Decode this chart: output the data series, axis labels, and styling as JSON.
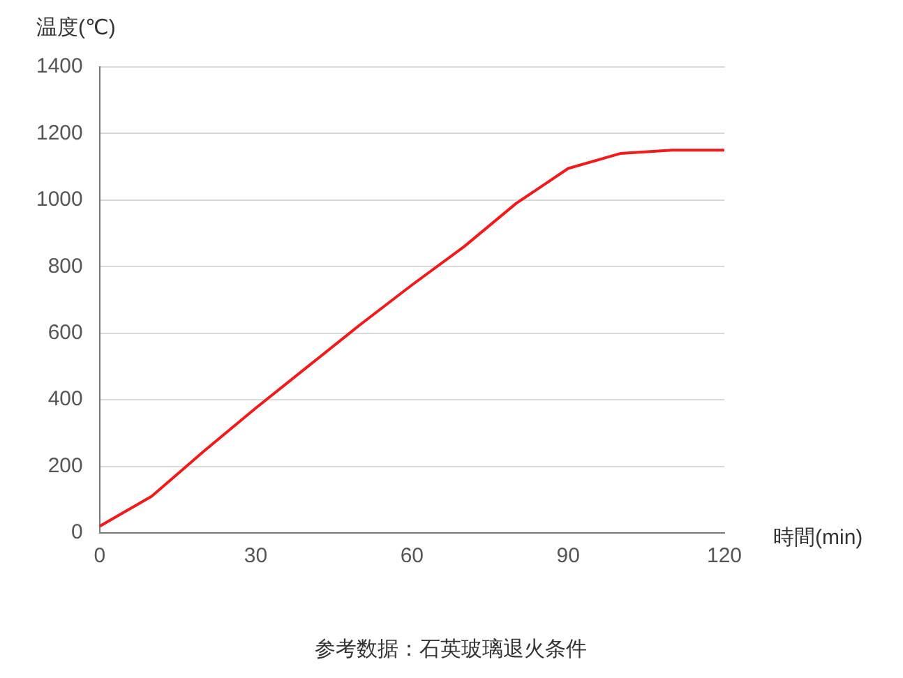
{
  "chart_data": {
    "type": "line",
    "ylabel": "温度(℃)",
    "xlabel": "時間(min)",
    "annotations": [
      "参考数据：石英玻璃退火条件"
    ],
    "x": [
      0,
      10,
      20,
      30,
      40,
      50,
      60,
      70,
      80,
      90,
      100,
      110,
      120
    ],
    "series": [
      {
        "color": "#ee1c1c",
        "values": [
          20,
          110,
          245,
          375,
          500,
          625,
          745,
          860,
          990,
          1095,
          1140,
          1150,
          1150
        ]
      }
    ],
    "xlim": [
      0,
      120
    ],
    "xticks": [
      0,
      30,
      60,
      90,
      120
    ],
    "ylim": [
      0,
      1400
    ],
    "yticks": [
      0,
      200,
      400,
      600,
      800,
      1000,
      1200,
      1400
    ],
    "grid": "y",
    "legend": false,
    "marker": "none",
    "line_style": "solid"
  }
}
